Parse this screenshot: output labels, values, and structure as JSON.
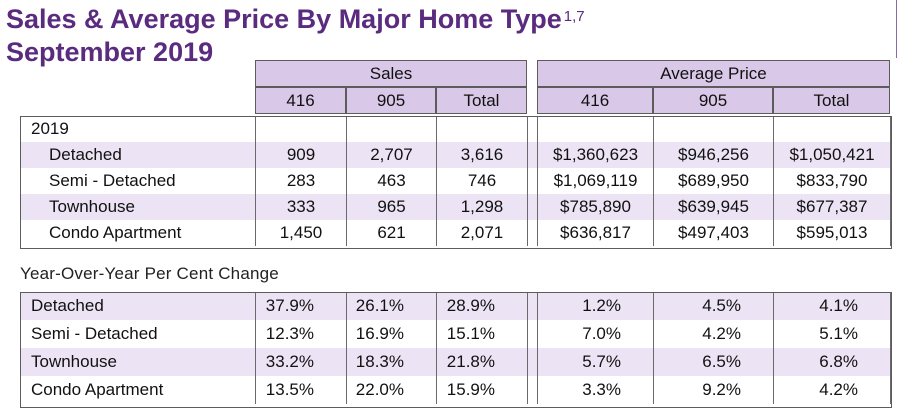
{
  "title": {
    "line1": "Sales & Average Price By Major Home Type",
    "superscript": "1,7",
    "line2": "September 2019"
  },
  "header": {
    "sales": "Sales",
    "average_price": "Average Price",
    "columns": [
      "416",
      "905",
      "Total",
      "416",
      "905",
      "Total"
    ]
  },
  "year_table": {
    "year_label": "2019",
    "rows": [
      {
        "label": "Detached",
        "values": [
          "909",
          "2,707",
          "3,616",
          "$1,360,623",
          "$946,256",
          "$1,050,421"
        ]
      },
      {
        "label": "Semi - Detached",
        "values": [
          "283",
          "463",
          "746",
          "$1,069,119",
          "$689,950",
          "$833,790"
        ]
      },
      {
        "label": "Townhouse",
        "values": [
          "333",
          "965",
          "1,298",
          "$785,890",
          "$639,945",
          "$677,387"
        ]
      },
      {
        "label": "Condo Apartment",
        "values": [
          "1,450",
          "621",
          "2,071",
          "$636,817",
          "$497,403",
          "$595,013"
        ]
      }
    ]
  },
  "yoy": {
    "label": "Year-Over-Year Per Cent Change",
    "rows": [
      {
        "label": "Detached",
        "values": [
          "37.9%",
          "26.1%",
          "28.9%",
          "1.2%",
          "4.5%",
          "4.1%"
        ]
      },
      {
        "label": "Semi - Detached",
        "values": [
          "12.3%",
          "16.9%",
          "15.1%",
          "7.0%",
          "4.2%",
          "5.1%"
        ]
      },
      {
        "label": "Townhouse",
        "values": [
          "33.2%",
          "18.3%",
          "21.8%",
          "5.7%",
          "6.5%",
          "6.8%"
        ]
      },
      {
        "label": "Condo Apartment",
        "values": [
          "13.5%",
          "22.0%",
          "15.9%",
          "3.3%",
          "9.2%",
          "4.2%"
        ]
      }
    ]
  }
}
